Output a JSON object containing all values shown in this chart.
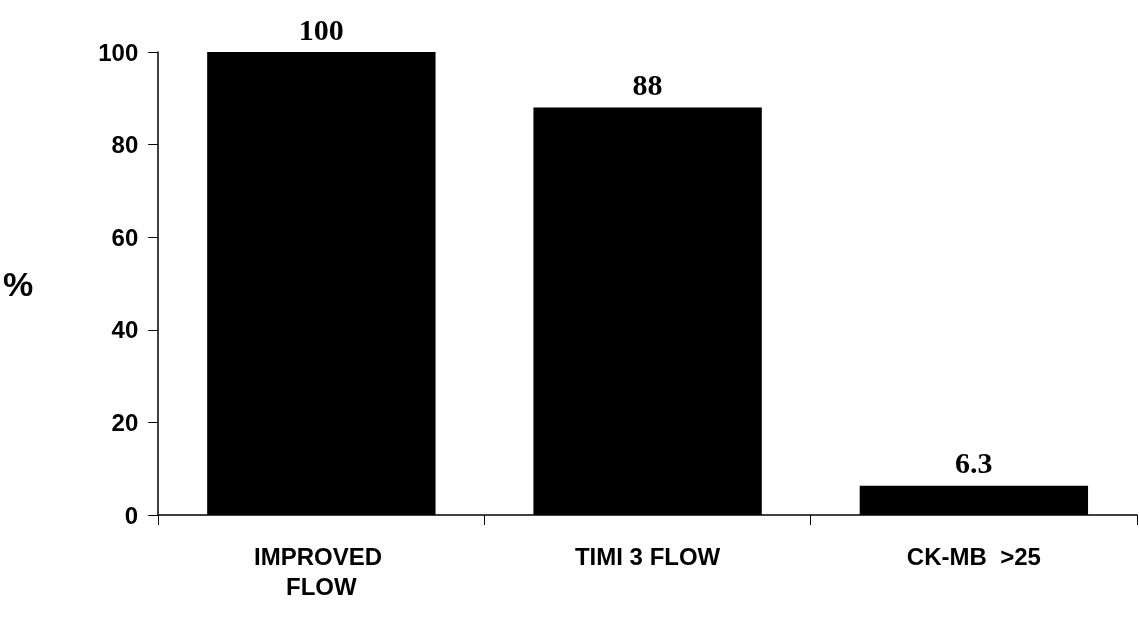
{
  "chart_data": {
    "type": "bar",
    "ylabel": "%",
    "categories": [
      "IMPROVED FLOW",
      "TIMI 3 FLOW",
      "CK-MB  >25"
    ],
    "values": [
      100,
      88,
      6.3
    ],
    "color": "#000000",
    "ylim": [
      0,
      100
    ],
    "yticks": [
      0,
      20,
      40,
      60,
      80,
      100
    ],
    "grid": false,
    "data_labels": true
  }
}
